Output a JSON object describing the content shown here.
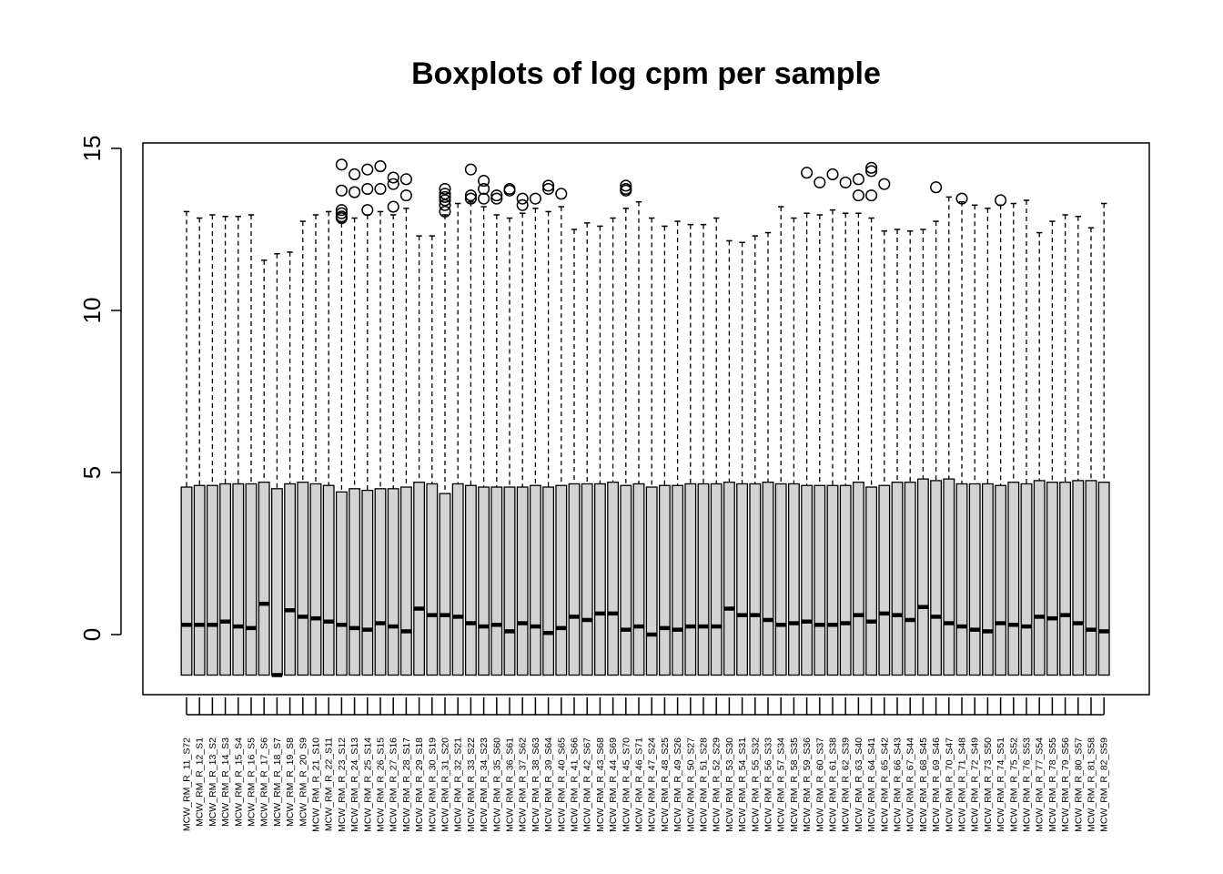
{
  "chart_data": {
    "type": "boxplot",
    "title": "Boxplots of log cpm per sample",
    "xlabel": "",
    "ylabel": "",
    "ylim": [
      -1.9,
      15.1
    ],
    "yticks": [
      0,
      5,
      10,
      15
    ],
    "grid": false,
    "legend": "none",
    "colors": {
      "box_fill": "#d3d3d3",
      "stroke": "#000000"
    },
    "whisker_low": -1.25,
    "q1": -1.25,
    "samples": [
      {
        "name": "MCW_RM_R_11_S72",
        "q3": 4.55,
        "median": 0.3,
        "upper": 13.05,
        "outliers": []
      },
      {
        "name": "MCW_RM_R_12_S1",
        "q3": 4.6,
        "median": 0.3,
        "upper": 12.85,
        "outliers": []
      },
      {
        "name": "MCW_RM_R_13_S2",
        "q3": 4.6,
        "median": 0.3,
        "upper": 12.95,
        "outliers": []
      },
      {
        "name": "MCW_RM_R_14_S3",
        "q3": 4.65,
        "median": 0.4,
        "upper": 12.9,
        "outliers": []
      },
      {
        "name": "MCW_RM_R_15_S4",
        "q3": 4.65,
        "median": 0.25,
        "upper": 12.9,
        "outliers": []
      },
      {
        "name": "MCW_RM_R_16_S5",
        "q3": 4.65,
        "median": 0.2,
        "upper": 12.95,
        "outliers": []
      },
      {
        "name": "MCW_RM_R_17_S6",
        "q3": 4.7,
        "median": 0.95,
        "upper": 11.55,
        "outliers": []
      },
      {
        "name": "MCW_RM_R_18_S7",
        "q3": 4.5,
        "median": -1.25,
        "upper": 11.75,
        "outliers": []
      },
      {
        "name": "MCW_RM_R_19_S8",
        "q3": 4.65,
        "median": 0.75,
        "upper": 11.8,
        "outliers": []
      },
      {
        "name": "MCW_RM_R_20_S9",
        "q3": 4.7,
        "median": 0.55,
        "upper": 12.75,
        "outliers": []
      },
      {
        "name": "MCW_RM_R_21_S10",
        "q3": 4.65,
        "median": 0.5,
        "upper": 12.95,
        "outliers": []
      },
      {
        "name": "MCW_RM_R_22_S11",
        "q3": 4.6,
        "median": 0.4,
        "upper": 13.05,
        "outliers": []
      },
      {
        "name": "MCW_RM_R_23_S12",
        "q3": 4.4,
        "median": 0.3,
        "upper": 12.7,
        "outliers": [
          14.5,
          13.7,
          13.1,
          13.0,
          12.9,
          12.85
        ]
      },
      {
        "name": "MCW_RM_R_24_S13",
        "q3": 4.5,
        "median": 0.2,
        "upper": 12.85,
        "outliers": [
          14.2,
          13.65
        ]
      },
      {
        "name": "MCW_RM_R_25_S14",
        "q3": 4.45,
        "median": 0.15,
        "upper": 12.95,
        "outliers": [
          14.35,
          13.75,
          13.1
        ]
      },
      {
        "name": "MCW_RM_R_26_S15",
        "q3": 4.5,
        "median": 0.35,
        "upper": 13.05,
        "outliers": [
          14.45,
          13.75
        ]
      },
      {
        "name": "MCW_RM_R_27_S16",
        "q3": 4.5,
        "median": 0.25,
        "upper": 12.95,
        "outliers": [
          14.1,
          13.9,
          13.2
        ]
      },
      {
        "name": "MCW_RM_R_28_S17",
        "q3": 4.55,
        "median": 0.1,
        "upper": 13.15,
        "outliers": [
          14.05,
          13.55
        ]
      },
      {
        "name": "MCW_RM_R_29_S18",
        "q3": 4.7,
        "median": 0.8,
        "upper": 12.3,
        "outliers": []
      },
      {
        "name": "MCW_RM_R_30_S19",
        "q3": 4.65,
        "median": 0.6,
        "upper": 12.3,
        "outliers": []
      },
      {
        "name": "MCW_RM_R_31_S20",
        "q3": 4.35,
        "median": 0.6,
        "upper": 12.95,
        "outliers": [
          13.75,
          13.6,
          13.5,
          13.4,
          13.25,
          13.05
        ]
      },
      {
        "name": "MCW_RM_R_32_S21",
        "q3": 4.65,
        "median": 0.55,
        "upper": 13.3,
        "outliers": []
      },
      {
        "name": "MCW_RM_R_33_S22",
        "q3": 4.6,
        "median": 0.35,
        "upper": 13.35,
        "outliers": [
          14.35,
          13.55,
          13.45
        ]
      },
      {
        "name": "MCW_RM_R_34_S23",
        "q3": 4.55,
        "median": 0.25,
        "upper": 13.2,
        "outliers": [
          14.0,
          13.75,
          13.45
        ]
      },
      {
        "name": "MCW_RM_R_35_S60",
        "q3": 4.55,
        "median": 0.3,
        "upper": 12.95,
        "outliers": [
          13.55,
          13.45
        ]
      },
      {
        "name": "MCW_RM_R_36_S61",
        "q3": 4.55,
        "median": 0.1,
        "upper": 12.85,
        "outliers": [
          13.75,
          13.7
        ]
      },
      {
        "name": "MCW_RM_R_37_S62",
        "q3": 4.55,
        "median": 0.35,
        "upper": 13.0,
        "outliers": [
          13.45,
          13.25
        ]
      },
      {
        "name": "MCW_RM_R_38_S63",
        "q3": 4.6,
        "median": 0.25,
        "upper": 13.15,
        "outliers": [
          13.45
        ]
      },
      {
        "name": "MCW_RM_R_39_S64",
        "q3": 4.55,
        "median": 0.05,
        "upper": 13.05,
        "outliers": [
          13.85,
          13.75
        ]
      },
      {
        "name": "MCW_RM_R_40_S65",
        "q3": 4.6,
        "median": 0.2,
        "upper": 13.2,
        "outliers": [
          13.6
        ]
      },
      {
        "name": "MCW_RM_R_41_S66",
        "q3": 4.65,
        "median": 0.55,
        "upper": 12.5,
        "outliers": []
      },
      {
        "name": "MCW_RM_R_42_S67",
        "q3": 4.65,
        "median": 0.45,
        "upper": 12.7,
        "outliers": []
      },
      {
        "name": "MCW_RM_R_43_S68",
        "q3": 4.65,
        "median": 0.65,
        "upper": 12.6,
        "outliers": []
      },
      {
        "name": "MCW_RM_R_44_S69",
        "q3": 4.7,
        "median": 0.65,
        "upper": 12.85,
        "outliers": []
      },
      {
        "name": "MCW_RM_R_45_S70",
        "q3": 4.6,
        "median": 0.15,
        "upper": 13.15,
        "outliers": [
          13.85,
          13.75,
          13.7
        ]
      },
      {
        "name": "MCW_RM_R_46_S71",
        "q3": 4.65,
        "median": 0.25,
        "upper": 13.35,
        "outliers": []
      },
      {
        "name": "MCW_RM_R_47_S24",
        "q3": 4.55,
        "median": 0.0,
        "upper": 12.85,
        "outliers": []
      },
      {
        "name": "MCW_RM_R_48_S25",
        "q3": 4.6,
        "median": 0.2,
        "upper": 12.6,
        "outliers": []
      },
      {
        "name": "MCW_RM_R_49_S26",
        "q3": 4.6,
        "median": 0.15,
        "upper": 12.75,
        "outliers": []
      },
      {
        "name": "MCW_RM_R_50_S27",
        "q3": 4.65,
        "median": 0.25,
        "upper": 12.65,
        "outliers": []
      },
      {
        "name": "MCW_RM_R_51_S28",
        "q3": 4.65,
        "median": 0.25,
        "upper": 12.65,
        "outliers": []
      },
      {
        "name": "MCW_RM_R_52_S29",
        "q3": 4.65,
        "median": 0.25,
        "upper": 12.85,
        "outliers": []
      },
      {
        "name": "MCW_RM_R_53_S30",
        "q3": 4.7,
        "median": 0.8,
        "upper": 12.15,
        "outliers": []
      },
      {
        "name": "MCW_RM_R_54_S31",
        "q3": 4.65,
        "median": 0.6,
        "upper": 12.1,
        "outliers": []
      },
      {
        "name": "MCW_RM_R_55_S32",
        "q3": 4.65,
        "median": 0.6,
        "upper": 12.3,
        "outliers": []
      },
      {
        "name": "MCW_RM_R_56_S33",
        "q3": 4.7,
        "median": 0.45,
        "upper": 12.4,
        "outliers": []
      },
      {
        "name": "MCW_RM_R_57_S34",
        "q3": 4.65,
        "median": 0.3,
        "upper": 13.2,
        "outliers": []
      },
      {
        "name": "MCW_RM_R_58_S35",
        "q3": 4.65,
        "median": 0.35,
        "upper": 12.85,
        "outliers": []
      },
      {
        "name": "MCW_RM_R_59_S36",
        "q3": 4.6,
        "median": 0.4,
        "upper": 13.0,
        "outliers": [
          14.25
        ]
      },
      {
        "name": "MCW_RM_R_60_S37",
        "q3": 4.6,
        "median": 0.3,
        "upper": 12.95,
        "outliers": [
          13.95
        ]
      },
      {
        "name": "MCW_RM_R_61_S38",
        "q3": 4.6,
        "median": 0.3,
        "upper": 13.1,
        "outliers": [
          14.2
        ]
      },
      {
        "name": "MCW_RM_R_62_S39",
        "q3": 4.6,
        "median": 0.35,
        "upper": 13.0,
        "outliers": [
          13.95
        ]
      },
      {
        "name": "MCW_RM_R_63_S40",
        "q3": 4.7,
        "median": 0.6,
        "upper": 13.0,
        "outliers": [
          14.05,
          13.55
        ]
      },
      {
        "name": "MCW_RM_R_64_S41",
        "q3": 4.55,
        "median": 0.4,
        "upper": 12.85,
        "outliers": [
          14.4,
          14.3,
          13.55
        ]
      },
      {
        "name": "MCW_RM_R_65_S42",
        "q3": 4.6,
        "median": 0.65,
        "upper": 12.45,
        "outliers": [
          13.9
        ]
      },
      {
        "name": "MCW_RM_R_66_S43",
        "q3": 4.7,
        "median": 0.6,
        "upper": 12.5,
        "outliers": []
      },
      {
        "name": "MCW_RM_R_67_S44",
        "q3": 4.7,
        "median": 0.45,
        "upper": 12.45,
        "outliers": []
      },
      {
        "name": "MCW_RM_R_68_S45",
        "q3": 4.8,
        "median": 0.85,
        "upper": 12.5,
        "outliers": []
      },
      {
        "name": "MCW_RM_R_69_S46",
        "q3": 4.75,
        "median": 0.55,
        "upper": 12.75,
        "outliers": [
          13.8
        ]
      },
      {
        "name": "MCW_RM_R_70_S47",
        "q3": 4.8,
        "median": 0.35,
        "upper": 13.5,
        "outliers": []
      },
      {
        "name": "MCW_RM_R_71_S48",
        "q3": 4.65,
        "median": 0.25,
        "upper": 13.35,
        "outliers": [
          13.45
        ]
      },
      {
        "name": "MCW_RM_R_72_S49",
        "q3": 4.65,
        "median": 0.15,
        "upper": 13.25,
        "outliers": []
      },
      {
        "name": "MCW_RM_R_73_S50",
        "q3": 4.65,
        "median": 0.1,
        "upper": 13.15,
        "outliers": []
      },
      {
        "name": "MCW_RM_R_74_S51",
        "q3": 4.6,
        "median": 0.35,
        "upper": 13.25,
        "outliers": [
          13.4
        ]
      },
      {
        "name": "MCW_RM_R_75_S52",
        "q3": 4.7,
        "median": 0.3,
        "upper": 13.3,
        "outliers": []
      },
      {
        "name": "MCW_RM_R_76_S53",
        "q3": 4.65,
        "median": 0.25,
        "upper": 13.4,
        "outliers": []
      },
      {
        "name": "MCW_RM_R_77_S54",
        "q3": 4.75,
        "median": 0.55,
        "upper": 12.4,
        "outliers": []
      },
      {
        "name": "MCW_RM_R_78_S55",
        "q3": 4.7,
        "median": 0.5,
        "upper": 12.75,
        "outliers": []
      },
      {
        "name": "MCW_RM_R_79_S56",
        "q3": 4.7,
        "median": 0.6,
        "upper": 12.95,
        "outliers": []
      },
      {
        "name": "MCW_RM_R_80_S57",
        "q3": 4.75,
        "median": 0.35,
        "upper": 12.9,
        "outliers": []
      },
      {
        "name": "MCW_RM_R_81_S58",
        "q3": 4.75,
        "median": 0.15,
        "upper": 12.55,
        "outliers": []
      },
      {
        "name": "MCW_RM_R_82_S59",
        "q3": 4.7,
        "median": 0.1,
        "upper": 13.3,
        "outliers": []
      }
    ]
  }
}
